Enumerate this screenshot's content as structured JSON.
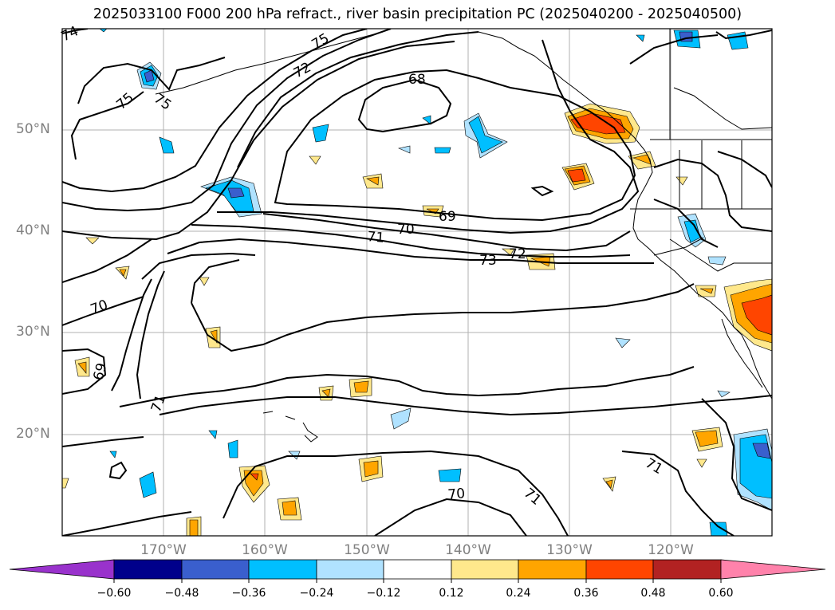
{
  "title": "2025033100 F000 200 hPa refract., river basin precipitation PC (2025040200 - 2025040500)",
  "map": {
    "projection": "PlateCarree",
    "lon_range": [
      -180,
      -110
    ],
    "lat_range": [
      10,
      60
    ],
    "lat_labels": [
      "50°N",
      "40°N",
      "30°N",
      "20°N"
    ],
    "lon_labels": [
      "170°W",
      "160°W",
      "150°W",
      "140°W",
      "130°W",
      "120°W"
    ],
    "gridlines": true
  },
  "contour_labels": [
    "74",
    "75",
    "75",
    "75",
    "72",
    "68",
    "69",
    "70",
    "71",
    "72",
    "73",
    "70",
    "69",
    "71",
    "71",
    "70",
    "71"
  ],
  "colorbar": {
    "ticks": [
      "−0.60",
      "−0.48",
      "−0.36",
      "−0.24",
      "−0.12",
      "0.12",
      "0.24",
      "0.36",
      "0.48",
      "0.60"
    ],
    "colors": [
      "#9932cc",
      "#00008b",
      "#3a5fcd",
      "#00bfff",
      "#b0e2ff",
      "#ffffff",
      "#ffe88c",
      "#ffa500",
      "#ff4500",
      "#b22222",
      "#ff82ab"
    ],
    "extend": "both"
  }
}
